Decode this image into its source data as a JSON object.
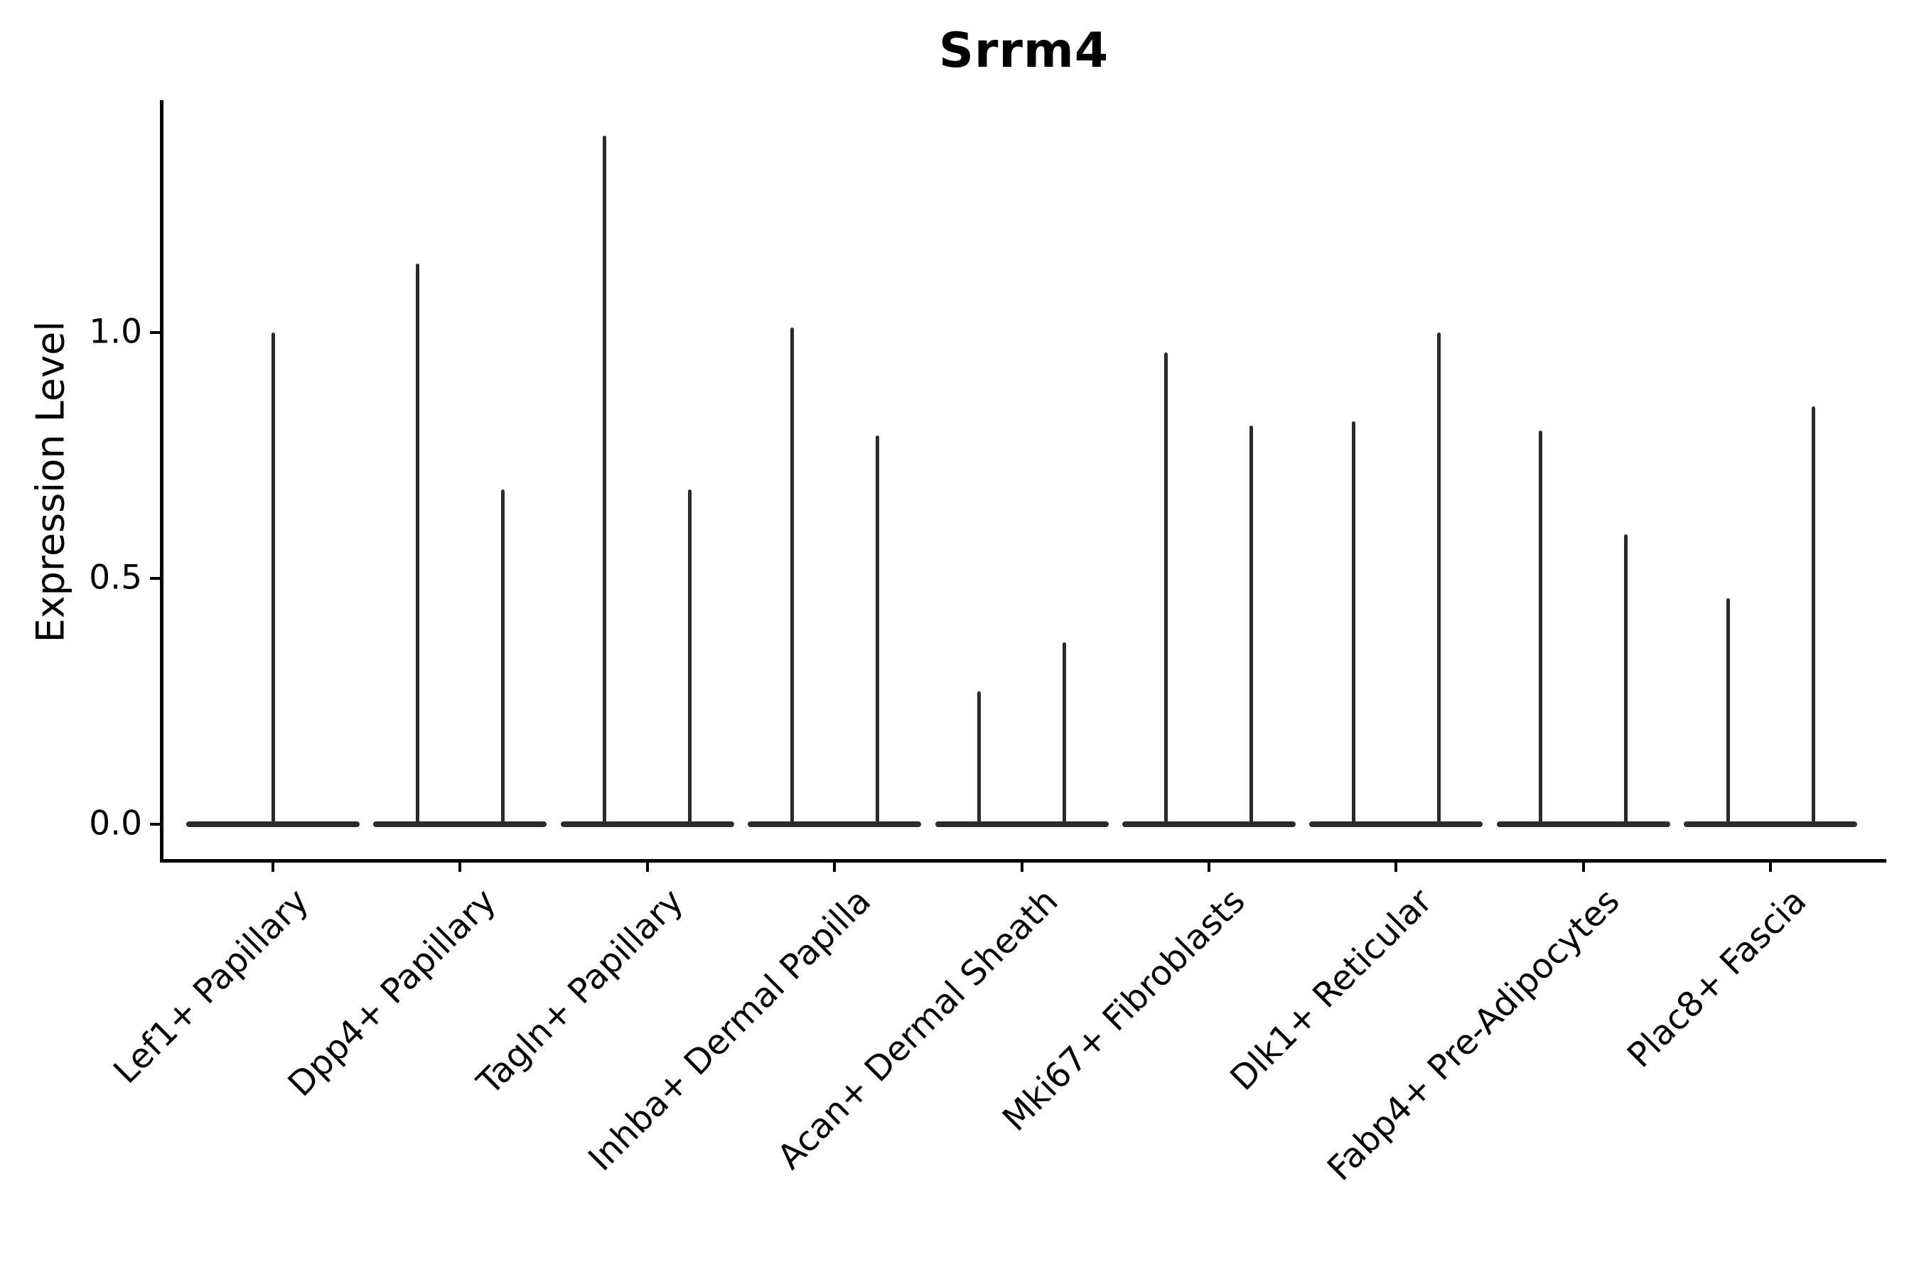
{
  "chart_data": {
    "type": "violin",
    "title": "Srrm4",
    "ylabel": "Expression Level",
    "xlabel": "",
    "grid": false,
    "legend": "none",
    "ylim": [
      -0.07,
      1.47
    ],
    "yticks": [
      {
        "label": "0.0",
        "value": 0.0
      },
      {
        "label": "0.5",
        "value": 0.5
      },
      {
        "label": "1.0",
        "value": 1.0
      }
    ],
    "categories": [
      "Lef1+ Papillary",
      "Dpp4+ Papillary",
      "Tagln+ Papillary",
      "Inhba+ Dermal Papilla",
      "Acan+ Dermal Sheath",
      "Mki67+ Fibroblasts",
      "Dlk1+ Reticular",
      "Fabp4+ Pre-Adipocytes",
      "Plac8+ Fascia"
    ],
    "violin_maxima": [
      [
        1.0
      ],
      [
        1.14,
        0.68
      ],
      [
        1.4,
        0.68
      ],
      [
        1.01,
        0.79
      ],
      [
        0.27,
        0.37
      ],
      [
        0.96,
        0.81
      ],
      [
        0.82,
        1.0
      ],
      [
        0.8,
        0.59
      ],
      [
        0.46,
        0.85
      ]
    ],
    "note": "Violins are collapsed to a flat base at expression 0 with a single thin tail rising to each violin's maximum; first category shows one centered tail, all others show two.",
    "colors": {
      "violin": "#2b2b2b",
      "axis": "#000000",
      "background": "#ffffff"
    }
  }
}
